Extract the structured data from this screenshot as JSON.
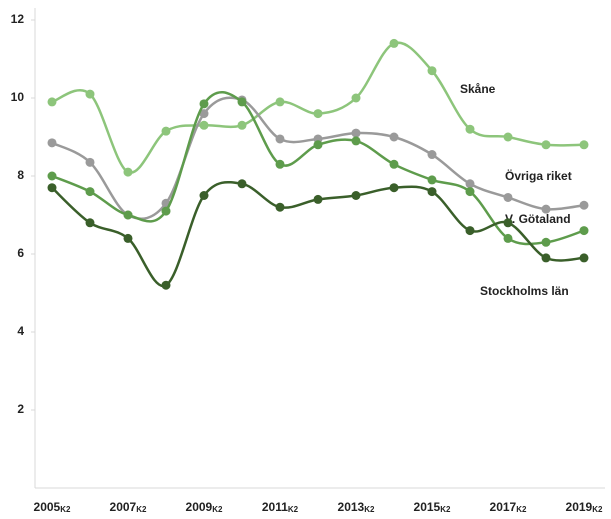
{
  "chart_data": {
    "type": "line",
    "categories": [
      "2005",
      null,
      "2007",
      null,
      "2009",
      null,
      "2011",
      null,
      "2013",
      null,
      "2015",
      null,
      "2017",
      null,
      "2019"
    ],
    "category_suffix": "K2",
    "ylim": [
      0,
      12
    ],
    "yticks": [
      2,
      4,
      6,
      8,
      10,
      12
    ],
    "series": [
      {
        "name": "Skåne",
        "color": "#8dc57b",
        "values": [
          9.9,
          10.1,
          8.1,
          9.15,
          9.3,
          9.3,
          9.9,
          9.6,
          10.0,
          11.4,
          10.7,
          9.2,
          9.0,
          8.8,
          8.8
        ]
      },
      {
        "name": "Övriga riket",
        "color": "#9a9a9a",
        "values": [
          8.85,
          8.35,
          7.0,
          7.3,
          9.6,
          9.95,
          8.95,
          8.95,
          9.1,
          9.0,
          8.55,
          7.8,
          7.45,
          7.15,
          7.25
        ]
      },
      {
        "name": "V. Götaland",
        "color": "#5e9c4c",
        "values": [
          8.0,
          7.6,
          7.0,
          7.1,
          9.85,
          9.9,
          8.3,
          8.8,
          8.9,
          8.3,
          7.9,
          7.6,
          6.4,
          6.3,
          6.6
        ]
      },
      {
        "name": "Stockholms län",
        "color": "#3a5f2a",
        "values": [
          7.7,
          6.8,
          6.4,
          5.2,
          7.5,
          7.8,
          7.2,
          7.4,
          7.5,
          7.7,
          7.6,
          6.6,
          6.8,
          5.9,
          5.9
        ]
      }
    ]
  }
}
